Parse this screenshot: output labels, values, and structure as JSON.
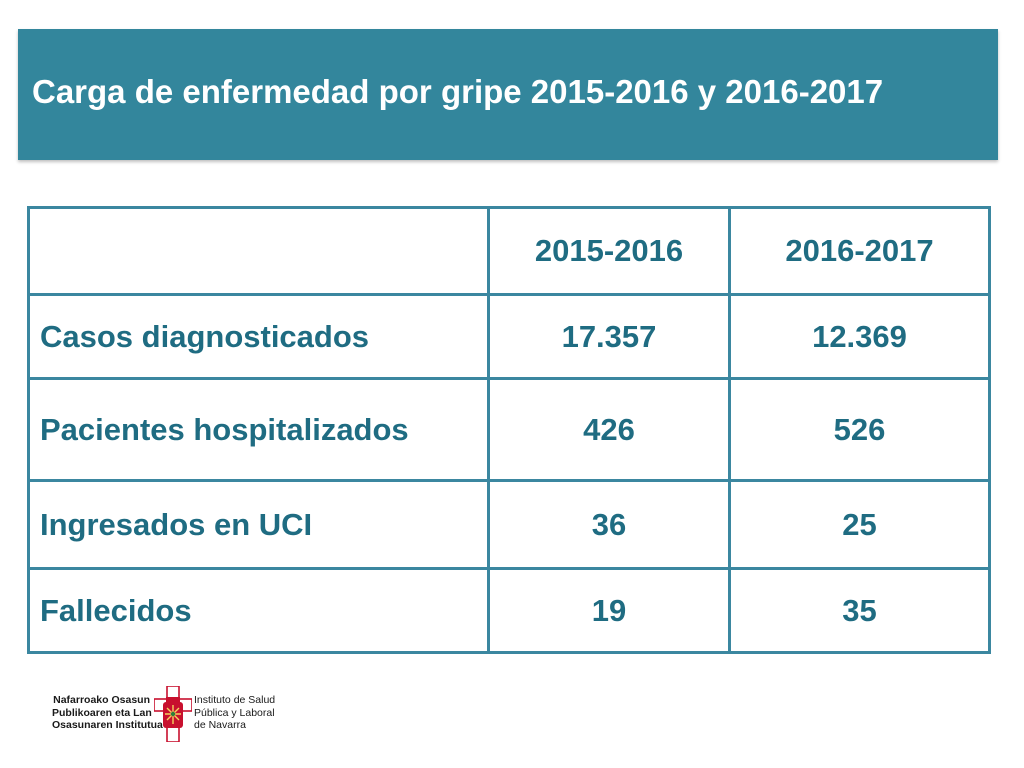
{
  "title": "Carga de enfermedad por gripe 2015-2016 y 2016-2017",
  "table": {
    "headers": [
      "",
      "2015-2016",
      "2016-2017"
    ],
    "rows": [
      {
        "label": "Casos diagnosticados",
        "v1": "17.357",
        "v2": "12.369"
      },
      {
        "label": "Pacientes hospitalizados",
        "v1": "426",
        "v2": "526"
      },
      {
        "label": "Ingresados en UCI",
        "v1": "36",
        "v2": "25"
      },
      {
        "label": "Fallecidos",
        "v1": "19",
        "v2": "35"
      }
    ]
  },
  "logo": {
    "left_lines": [
      "Nafarroako Osasun",
      "Publikoaren eta Lan",
      "Osasunaren Institutua"
    ],
    "right_lines": [
      "Instituto de Salud",
      "Pública y Laboral",
      "de Navarra"
    ],
    "emblem_icon": "navarra-crest-icon",
    "brand_color": "#c8102e"
  },
  "colors": {
    "banner": "#33869c",
    "table_text": "#1f6c82",
    "table_border": "#3b87a0"
  }
}
